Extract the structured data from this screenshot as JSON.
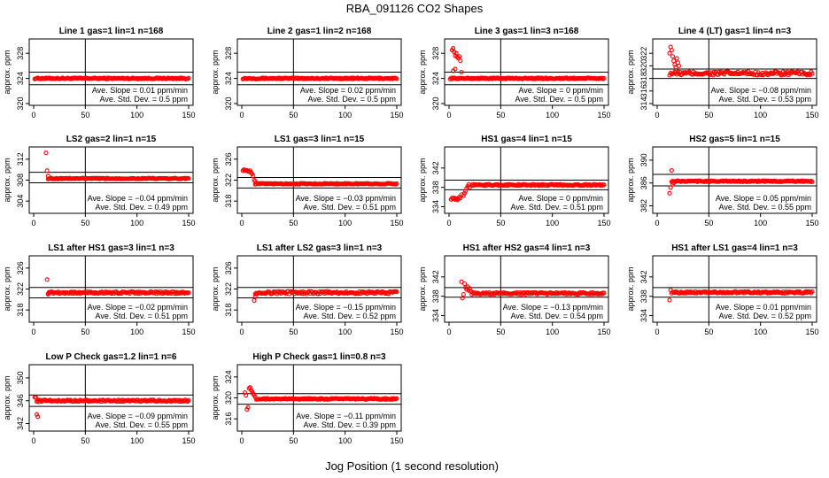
{
  "figure": {
    "title": "RBA_091126  CO2 Shapes",
    "xlabel": "Jog Position (1 second resolution)",
    "ylabel": "approx. ppm",
    "slope_label": "Ave. Slope =",
    "slope_unit": "ppm/min",
    "sd_label": "Ave. Std. Dev. =",
    "sd_unit": "ppm"
  },
  "chart_data": [
    {
      "type": "scatter",
      "title": "Line 1 gas=1 lin=1 n=168",
      "xlim": [
        0,
        150
      ],
      "ylim": [
        320,
        330
      ],
      "yticks": [
        320,
        324,
        328
      ],
      "xticks": [
        0,
        50,
        100,
        150
      ],
      "hlines": [
        325,
        323
      ],
      "vline": 50,
      "slope": "0.01",
      "sd": "0.5",
      "series": {
        "color": "#ff0000",
        "x_start": 1,
        "x_end": 150,
        "baseline": 324,
        "noise": 0.1,
        "spikes": []
      }
    },
    {
      "type": "scatter",
      "title": "Line 2 gas=1 lin=2 n=168",
      "xlim": [
        0,
        150
      ],
      "ylim": [
        320,
        330
      ],
      "yticks": [
        320,
        324,
        328
      ],
      "xticks": [
        0,
        50,
        100,
        150
      ],
      "hlines": [
        325,
        323
      ],
      "vline": 50,
      "slope": "0.02",
      "sd": "0.5",
      "series": {
        "color": "#ff0000",
        "x_start": 1,
        "x_end": 150,
        "baseline": 324,
        "noise": 0.1,
        "spikes": []
      }
    },
    {
      "type": "scatter",
      "title": "Line 3 gas=1 lin=3 n=168",
      "xlim": [
        0,
        150
      ],
      "ylim": [
        320,
        330
      ],
      "yticks": [
        320,
        324,
        328
      ],
      "xticks": [
        0,
        50,
        100,
        150
      ],
      "hlines": [
        325,
        323
      ],
      "vline": 50,
      "slope": "0",
      "sd": "0.5",
      "series": {
        "color": "#ff0000",
        "x_start": 1,
        "x_end": 150,
        "baseline": 324,
        "noise": 0.1,
        "spikes": [
          [
            3,
            328.5
          ],
          [
            4,
            328.8
          ],
          [
            5,
            328.2
          ],
          [
            6,
            327.6
          ],
          [
            7,
            328.0
          ],
          [
            8,
            327.4
          ],
          [
            9,
            327.2
          ],
          [
            10,
            327.5
          ],
          [
            11,
            326.8
          ],
          [
            4,
            325.2
          ],
          [
            6,
            325.5
          ],
          [
            12,
            325.0
          ]
        ]
      }
    },
    {
      "type": "scatter",
      "title": "Line 4 (LT) gas=1 lin=4 n=3",
      "xlim": [
        0,
        150
      ],
      "ylim": [
        314,
        324
      ],
      "yticks": [
        314,
        316,
        318,
        320,
        322
      ],
      "xticks": [
        0,
        50,
        100,
        150
      ],
      "hlines": [
        319.5,
        318
      ],
      "vline": 50,
      "slope": "−0.08",
      "sd": "0.53",
      "series": {
        "color": "#ff0000",
        "x_start": 12,
        "x_end": 150,
        "baseline": 318.8,
        "noise": 0.3,
        "spikes": [
          [
            12,
            322.0
          ],
          [
            13,
            323.0
          ],
          [
            14,
            322.5
          ],
          [
            15,
            321.5
          ],
          [
            16,
            320.8
          ],
          [
            17,
            320.2
          ],
          [
            18,
            319.8
          ],
          [
            19,
            321.2
          ],
          [
            20,
            320.5
          ],
          [
            21,
            320.0
          ]
        ]
      }
    },
    {
      "type": "scatter",
      "title": "LS2 gas=2 lin=1 n=15",
      "xlim": [
        0,
        150
      ],
      "ylim": [
        302,
        314
      ],
      "yticks": [
        304,
        308,
        312
      ],
      "xticks": [
        0,
        50,
        100,
        150
      ],
      "hlines": [
        309.5,
        307.5
      ],
      "vline": 50,
      "slope": "−0.04",
      "sd": "0.49",
      "series": {
        "color": "#ff0000",
        "x_start": 14,
        "x_end": 150,
        "baseline": 308.3,
        "noise": 0.1,
        "spikes": [
          [
            12,
            313.2
          ],
          [
            13,
            309.8
          ],
          [
            14,
            308.8
          ]
        ]
      }
    },
    {
      "type": "scatter",
      "title": "LS1 gas=3 lin=1 n=15",
      "xlim": [
        0,
        150
      ],
      "ylim": [
        316,
        328
      ],
      "yticks": [
        318,
        322,
        326
      ],
      "xticks": [
        0,
        50,
        100,
        150
      ],
      "hlines": [
        322.5,
        320.5
      ],
      "vline": 50,
      "slope": "−0.03",
      "sd": "0.51",
      "series": {
        "color": "#ff0000",
        "x_start": 13,
        "x_end": 150,
        "baseline": 321.3,
        "noise": 0.1,
        "spikes": [
          [
            1,
            323.8
          ],
          [
            2,
            324.0
          ],
          [
            3,
            323.8
          ],
          [
            4,
            323.8
          ],
          [
            5,
            323.9
          ],
          [
            6,
            323.7
          ],
          [
            7,
            323.6
          ],
          [
            8,
            323.8
          ],
          [
            9,
            323.5
          ],
          [
            10,
            323.2
          ],
          [
            11,
            322.8
          ],
          [
            12,
            322.0
          ],
          [
            13,
            321.8
          ]
        ]
      }
    },
    {
      "type": "scatter",
      "title": "HS1 gas=4 lin=1 n=15",
      "xlim": [
        0,
        150
      ],
      "ylim": [
        333,
        346
      ],
      "yticks": [
        334,
        338,
        342
      ],
      "xticks": [
        0,
        50,
        100,
        150
      ],
      "hlines": [
        339.5,
        337.5
      ],
      "vline": 50,
      "slope": "0",
      "sd": "0.51",
      "series": {
        "color": "#ff0000",
        "x_start": 22,
        "x_end": 150,
        "baseline": 338.5,
        "noise": 0.15,
        "spikes": [
          [
            2,
            335.5
          ],
          [
            3,
            335.8
          ],
          [
            4,
            335.6
          ],
          [
            5,
            335.8
          ],
          [
            6,
            335.5
          ],
          [
            7,
            335.7
          ],
          [
            8,
            335.4
          ],
          [
            9,
            335.6
          ],
          [
            10,
            336.0
          ],
          [
            11,
            335.8
          ],
          [
            12,
            336.5
          ],
          [
            14,
            336.3
          ],
          [
            15,
            336.8
          ],
          [
            16,
            337.2
          ],
          [
            17,
            337.8
          ],
          [
            18,
            338.2
          ],
          [
            19,
            338.6
          ],
          [
            20,
            338.0
          ]
        ]
      }
    },
    {
      "type": "scatter",
      "title": "HS2 gas=5 lin=1 n=15",
      "xlim": [
        0,
        150
      ],
      "ylim": [
        381,
        392
      ],
      "yticks": [
        382,
        386,
        390
      ],
      "xticks": [
        0,
        50,
        100,
        150
      ],
      "hlines": [
        387.5,
        385.5
      ],
      "vline": 50,
      "slope": "0.05",
      "sd": "0.55",
      "series": {
        "color": "#ff0000",
        "x_start": 14,
        "x_end": 150,
        "baseline": 386.3,
        "noise": 0.1,
        "spikes": [
          [
            12,
            384.2
          ],
          [
            13,
            385.2
          ],
          [
            14,
            388.2
          ],
          [
            15,
            385.8
          ],
          [
            16,
            386.0
          ]
        ]
      }
    },
    {
      "type": "scatter",
      "title": "LS1 after HS1 gas=3 lin=1 n=3",
      "xlim": [
        0,
        150
      ],
      "ylim": [
        316,
        328
      ],
      "yticks": [
        318,
        322,
        326
      ],
      "xticks": [
        0,
        50,
        100,
        150
      ],
      "hlines": [
        322.3,
        320.3
      ],
      "vline": 50,
      "slope": "−0.02",
      "sd": "0.51",
      "series": {
        "color": "#ff0000",
        "x_start": 14,
        "x_end": 150,
        "baseline": 321.3,
        "noise": 0.2,
        "spikes": [
          [
            13,
            323.8
          ],
          [
            14,
            321.0
          ],
          [
            15,
            321.4
          ]
        ]
      }
    },
    {
      "type": "scatter",
      "title": "LS1 after LS2 gas=3 lin=1 n=3",
      "xlim": [
        0,
        150
      ],
      "ylim": [
        316,
        328
      ],
      "yticks": [
        318,
        322,
        326
      ],
      "xticks": [
        0,
        50,
        100,
        150
      ],
      "hlines": [
        322.3,
        320.3
      ],
      "vline": 50,
      "slope": "−0.15",
      "sd": "0.52",
      "series": {
        "color": "#ff0000",
        "x_start": 13,
        "x_end": 150,
        "baseline": 321.3,
        "noise": 0.25,
        "spikes": [
          [
            12,
            319.8
          ],
          [
            13,
            320.5
          ],
          [
            14,
            321.2
          ]
        ]
      }
    },
    {
      "type": "scatter",
      "title": "HS1 after HS2 gas=4 lin=1 n=3",
      "xlim": [
        0,
        150
      ],
      "ylim": [
        333,
        346
      ],
      "yticks": [
        334,
        338,
        342
      ],
      "xticks": [
        0,
        50,
        100,
        150
      ],
      "hlines": [
        339.8,
        337.8
      ],
      "vline": 50,
      "slope": "−0.13",
      "sd": "0.54",
      "series": {
        "color": "#ff0000",
        "x_start": 22,
        "x_end": 150,
        "baseline": 338.6,
        "noise": 0.2,
        "spikes": [
          [
            12,
            341.0
          ],
          [
            13,
            337.6
          ],
          [
            14,
            338.4
          ],
          [
            15,
            340.6
          ],
          [
            16,
            339.8
          ],
          [
            17,
            339.4
          ],
          [
            18,
            340.0
          ],
          [
            19,
            339.2
          ],
          [
            20,
            339.6
          ],
          [
            21,
            339.0
          ]
        ]
      }
    },
    {
      "type": "scatter",
      "title": "HS1 after LS1 gas=4 lin=1 n=3",
      "xlim": [
        0,
        150
      ],
      "ylim": [
        333,
        346
      ],
      "yticks": [
        334,
        338,
        342
      ],
      "xticks": [
        0,
        50,
        100,
        150
      ],
      "hlines": [
        339.8,
        337.8
      ],
      "vline": 50,
      "slope": "0.01",
      "sd": "0.52",
      "series": {
        "color": "#ff0000",
        "x_start": 14,
        "x_end": 150,
        "baseline": 338.8,
        "noise": 0.2,
        "spikes": [
          [
            12,
            337.2
          ],
          [
            13,
            339.3
          ]
        ]
      }
    },
    {
      "type": "scatter",
      "title": "Low P Check gas=1.2 lin=1 n=6",
      "xlim": [
        0,
        150
      ],
      "ylim": [
        341,
        352
      ],
      "yticks": [
        342,
        346,
        350
      ],
      "xticks": [
        0,
        50,
        100,
        150
      ],
      "hlines": [
        347.0,
        345.0
      ],
      "vline": 50,
      "slope": "−0.09",
      "sd": "0.55",
      "series": {
        "color": "#ff0000",
        "x_start": 3,
        "x_end": 150,
        "baseline": 346.0,
        "noise": 0.15,
        "spikes": [
          [
            1,
            346.6
          ],
          [
            2,
            346.6
          ],
          [
            3,
            343.6
          ],
          [
            4,
            343.2
          ],
          [
            5,
            345.8
          ]
        ]
      }
    },
    {
      "type": "scatter",
      "title": "High P Check gas=1 lin=0.8 n=3",
      "xlim": [
        0,
        150
      ],
      "ylim": [
        314,
        326
      ],
      "yticks": [
        316,
        320,
        324
      ],
      "xticks": [
        0,
        50,
        100,
        150
      ],
      "hlines": [
        320.8,
        318.8
      ],
      "vline": 50,
      "slope": "−0.11",
      "sd": "0.39",
      "series": {
        "color": "#ff0000",
        "x_start": 14,
        "x_end": 150,
        "baseline": 319.8,
        "noise": 0.12,
        "spikes": [
          [
            3,
            321.0
          ],
          [
            4,
            320.5
          ],
          [
            5,
            317.8
          ],
          [
            6,
            318.2
          ],
          [
            7,
            321.8
          ],
          [
            8,
            322.0
          ],
          [
            9,
            321.5
          ],
          [
            10,
            321.2
          ],
          [
            11,
            320.8
          ],
          [
            12,
            320.5
          ],
          [
            13,
            320.2
          ]
        ]
      }
    }
  ]
}
